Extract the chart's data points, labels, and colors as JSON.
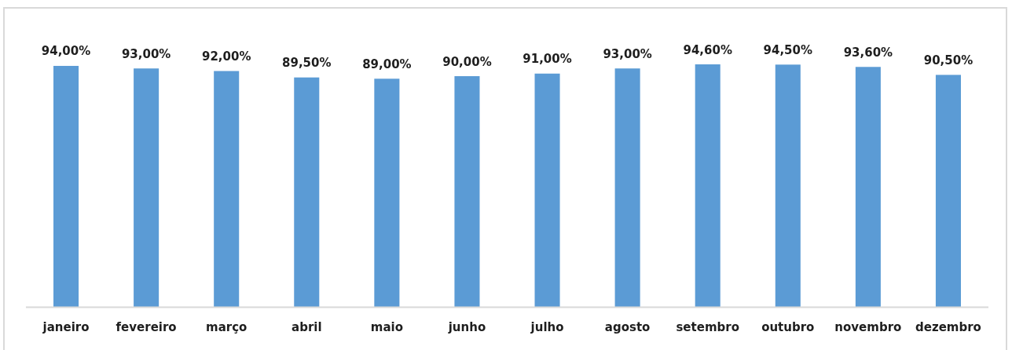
{
  "chart_data": {
    "type": "bar",
    "categories": [
      "janeiro",
      "fevereiro",
      "março",
      "abril",
      "maio",
      "junho",
      "julho",
      "agosto",
      "setembro",
      "outubro",
      "novembro",
      "dezembro"
    ],
    "values": [
      94,
      93,
      92,
      89.5,
      89,
      90,
      91,
      93,
      94.6,
      94.5,
      93.6,
      90.5
    ],
    "value_labels": [
      "94,00%",
      "93,00%",
      "92,00%",
      "89,50%",
      "89,00%",
      "90,00%",
      "91,00%",
      "93,00%",
      "94,60%",
      "94,50%",
      "93,60%",
      "90,50%"
    ],
    "color": "#5b9bd5"
  }
}
